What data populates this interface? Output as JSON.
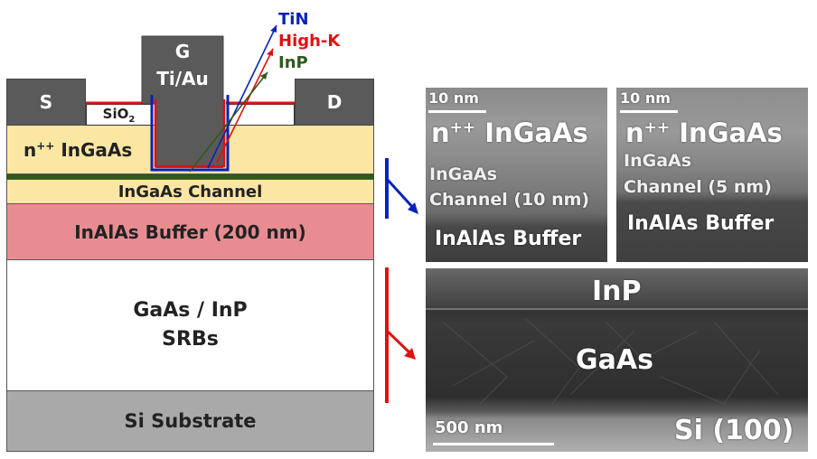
{
  "device": {
    "source_label": "S",
    "drain_label": "D",
    "gate_label_line1": "G",
    "gate_label_line2": "Ti/Au",
    "sio2_label": "SiO",
    "sio2_sub": "2",
    "contact_layer_prefix": "n",
    "contact_layer_sup": "++",
    "contact_layer_suffix": " InGaAs",
    "channel_label": "InGaAs Channel",
    "buffer_label": "InAlAs Buffer (200 nm)",
    "srb_line1": "GaAs / InP",
    "srb_line2": "SRBs",
    "substrate_label": "Si Substrate"
  },
  "gate_stack_legend": [
    {
      "label": "TiN",
      "color": "#0a22b8"
    },
    {
      "label": "High-K",
      "color": "#e01010"
    },
    {
      "label": "InP",
      "color": "#2f5a1c"
    }
  ],
  "tem_top_left": {
    "scale": "10 nm",
    "layer1_prefix": "n",
    "layer1_sup": "++",
    "layer1_suffix": " InGaAs",
    "layer2_line1": "InGaAs",
    "layer2_line2": "Channel (10 nm)",
    "layer3": "InAlAs Buffer"
  },
  "tem_top_right": {
    "scale": "10 nm",
    "layer1_prefix": "n",
    "layer1_sup": "++",
    "layer1_suffix": " InGaAs",
    "layer2_line1": "InGaAs",
    "layer2_line2": "Channel (5 nm)",
    "layer3": "InAlAs Buffer"
  },
  "tem_bottom": {
    "top_layer": "InP",
    "middle_layer": "GaAs",
    "scale": "500 nm",
    "substrate": "Si (100)"
  },
  "colors": {
    "contact_layer": "#fbe6a4",
    "channel": "#fbe6a4",
    "buffer": "#e88c92",
    "srb": "#ffffff",
    "substrate": "#a9a9a9",
    "metal": "#5a5a5a",
    "bracket_blue": "#0a22b8",
    "bracket_red": "#e01010"
  }
}
